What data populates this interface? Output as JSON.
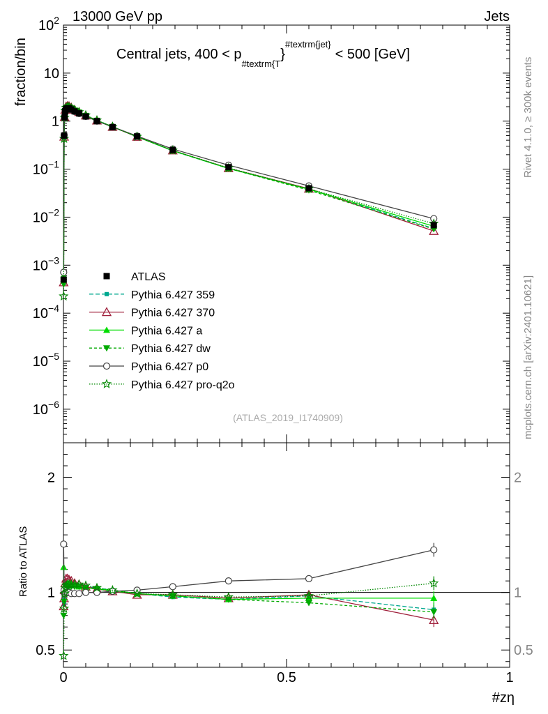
{
  "header": {
    "left": "13000 GeV pp",
    "right": "Jets"
  },
  "side": {
    "top": "Rivet 4.1.0, ≥ 300k events",
    "bottom": "mcplots.cern.ch [arXiv:2401.10621]"
  },
  "chart_data": {
    "type": "line",
    "title": "Central jets, 400 < p",
    "title_sub": "#textrm{T",
    "title_sup": "#textrm{jet}",
    "title_close": "}",
    "title_tail": "< 500 [GeV]",
    "analysis_label": "(ATLAS_2019_I1740909)",
    "xlabel": "#zη",
    "ylabel": "fraction/bin",
    "ratio_ylabel": "Ratio to ATLAS",
    "xlim": [
      0,
      1
    ],
    "ylim": [
      2e-07,
      100
    ],
    "ratio_ylim": [
      0.35,
      2.3
    ],
    "x_ticks": [
      {
        "v": 0,
        "label": "0"
      },
      {
        "v": 0.5,
        "label": "0.5"
      },
      {
        "v": 1,
        "label": "1"
      }
    ],
    "y_ticks": [
      {
        "v": 100,
        "base": "10",
        "exp": "2"
      },
      {
        "v": 10,
        "base": "10",
        "exp": ""
      },
      {
        "v": 1,
        "base": "1",
        "exp": ""
      },
      {
        "v": 0.1,
        "base": "10",
        "exp": "−1"
      },
      {
        "v": 0.01,
        "base": "10",
        "exp": "−2"
      },
      {
        "v": 0.001,
        "base": "10",
        "exp": "−3"
      },
      {
        "v": 0.0001,
        "base": "10",
        "exp": "−4"
      },
      {
        "v": 1e-05,
        "base": "10",
        "exp": "−5"
      },
      {
        "v": 1e-06,
        "base": "10",
        "exp": "−6"
      }
    ],
    "ratio_ticks": [
      {
        "v": 0.5,
        "label": "0.5"
      },
      {
        "v": 1,
        "label": "1"
      },
      {
        "v": 2,
        "label": "2"
      }
    ],
    "x": [
      0.0005,
      0.0015,
      0.0025,
      0.004,
      0.006,
      0.009,
      0.0125,
      0.0175,
      0.025,
      0.035,
      0.05,
      0.075,
      0.11,
      0.165,
      0.245,
      0.37,
      0.55,
      0.83
    ],
    "data": {
      "name": "ATLAS",
      "values": [
        0.0005,
        0.5,
        1.2,
        1.6,
        1.8,
        1.85,
        1.85,
        1.75,
        1.6,
        1.45,
        1.25,
        1.0,
        0.75,
        0.48,
        0.25,
        0.11,
        0.04,
        0.0068
      ],
      "errors": [
        5e-05,
        0.02,
        0.03,
        0.04,
        0.04,
        0.04,
        0.04,
        0.04,
        0.03,
        0.03,
        0.03,
        0.02,
        0.02,
        0.01,
        0.006,
        0.003,
        0.0012,
        0.0004
      ]
    },
    "series": [
      {
        "name": "Pythia 6.427 359",
        "color": "#00a88f",
        "dash": "6,3",
        "marker": "square-small",
        "ratio": [
          0.95,
          0.9,
          0.95,
          1.0,
          1.05,
          1.08,
          1.07,
          1.06,
          1.06,
          1.06,
          1.05,
          1.04,
          1.02,
          0.99,
          0.96,
          0.94,
          0.97,
          0.85
        ]
      },
      {
        "name": "Pythia 6.427 370",
        "color": "#a0203c",
        "dash": "",
        "marker": "triangle-open",
        "ratio": [
          0.88,
          0.95,
          1.02,
          1.08,
          1.12,
          1.12,
          1.11,
          1.1,
          1.08,
          1.07,
          1.05,
          1.03,
          1.01,
          0.98,
          0.98,
          0.95,
          0.98,
          0.76
        ]
      },
      {
        "name": "Pythia 6.427 a",
        "color": "#00dd00",
        "dash": "",
        "marker": "triangle-up",
        "ratio": [
          1.22,
          1.0,
          1.02,
          1.05,
          1.07,
          1.08,
          1.08,
          1.07,
          1.06,
          1.05,
          1.04,
          1.03,
          1.02,
          0.99,
          0.97,
          0.94,
          0.95,
          0.95
        ]
      },
      {
        "name": "Pythia 6.427 dw",
        "color": "#00aa00",
        "dash": "4,3",
        "marker": "triangle-down",
        "ratio": [
          0.8,
          0.92,
          0.98,
          1.02,
          1.04,
          1.05,
          1.05,
          1.05,
          1.05,
          1.05,
          1.04,
          1.03,
          1.01,
          0.99,
          0.97,
          0.94,
          0.91,
          0.83
        ]
      },
      {
        "name": "Pythia 6.427 p0",
        "color": "#444444",
        "dash": "",
        "marker": "circle-open",
        "ratio": [
          1.42,
          1.02,
          0.99,
          0.99,
          1.0,
          1.0,
          1.0,
          0.99,
          0.99,
          0.99,
          1.0,
          1.0,
          1.01,
          1.02,
          1.05,
          1.1,
          1.12,
          1.37
        ]
      },
      {
        "name": "Pythia 6.427 pro-q2o",
        "color": "#008800",
        "dash": "1.5,2",
        "marker": "star-open",
        "ratio": [
          0.45,
          0.86,
          0.99,
          1.04,
          1.06,
          1.07,
          1.07,
          1.07,
          1.07,
          1.07,
          1.06,
          1.04,
          1.02,
          0.99,
          0.98,
          0.96,
          0.97,
          1.08
        ]
      }
    ],
    "legend_position": "middle-left"
  }
}
